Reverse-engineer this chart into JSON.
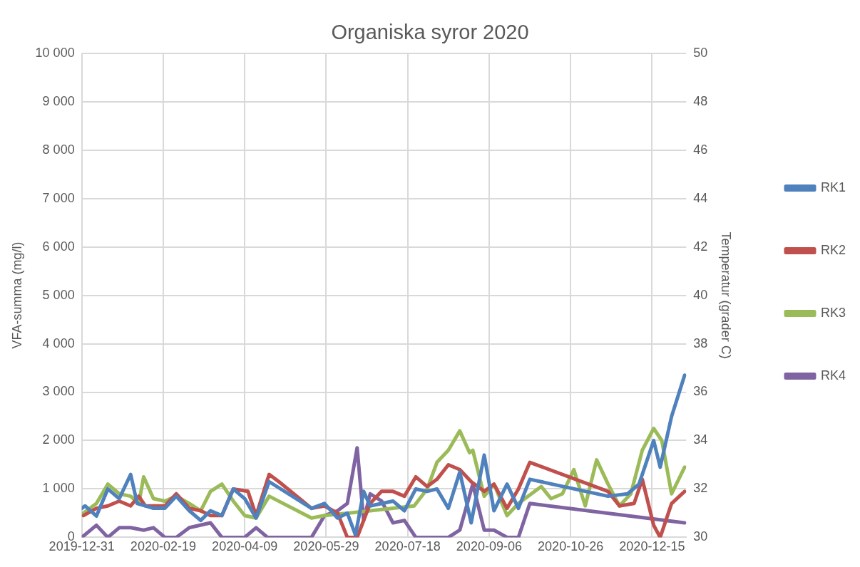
{
  "chart_data": {
    "type": "line",
    "title": "Organiska syror 2020",
    "ylabel": "VFA-summa (mg/l)",
    "y2label": "Temperatur (grader C)",
    "xlim": [
      "2019-12-31",
      "2021-01-05"
    ],
    "xticks": [
      "2019-12-31",
      "2020-02-19",
      "2020-04-09",
      "2020-05-29",
      "2020-07-18",
      "2020-09-06",
      "2020-10-26",
      "2020-12-15"
    ],
    "ylim": [
      0,
      10000
    ],
    "yticks": [
      {
        "value": 0,
        "label": "0"
      },
      {
        "value": 1000,
        "label": "1 000"
      },
      {
        "value": 2000,
        "label": "2 000"
      },
      {
        "value": 3000,
        "label": "3 000"
      },
      {
        "value": 4000,
        "label": "4 000"
      },
      {
        "value": 5000,
        "label": "5 000"
      },
      {
        "value": 6000,
        "label": "6 000"
      },
      {
        "value": 7000,
        "label": "7 000"
      },
      {
        "value": 8000,
        "label": "8 000"
      },
      {
        "value": 9000,
        "label": "9 000"
      },
      {
        "value": 10000,
        "label": "10 000"
      }
    ],
    "y2lim": [
      30,
      50
    ],
    "y2ticks": [
      30,
      32,
      34,
      36,
      38,
      40,
      42,
      44,
      46,
      48,
      50
    ],
    "grid": true,
    "legend": "right",
    "marker": "none",
    "line_style": "solid",
    "series": [
      {
        "name": "RK1",
        "color": "#4f81bd",
        "x": [
          "2019-12-31",
          "2020-01-02",
          "2020-01-09",
          "2020-01-16",
          "2020-01-23",
          "2020-01-30",
          "2020-02-03",
          "2020-02-08",
          "2020-02-13",
          "2020-02-20",
          "2020-02-27",
          "2020-03-06",
          "2020-03-13",
          "2020-03-19",
          "2020-03-26",
          "2020-04-02",
          "2020-04-09",
          "2020-04-16",
          "2020-04-24",
          "2020-05-20",
          "2020-05-28",
          "2020-06-05",
          "2020-06-11",
          "2020-06-16",
          "2020-06-21",
          "2020-06-25",
          "2020-07-09",
          "2020-07-16",
          "2020-07-23",
          "2020-07-30",
          "2020-08-05",
          "2020-08-12",
          "2020-08-19",
          "2020-08-26",
          "2020-09-03",
          "2020-09-09",
          "2020-09-17",
          "2020-09-24",
          "2020-10-01",
          "2020-11-18",
          "2020-11-30",
          "2020-12-07",
          "2020-12-16",
          "2020-12-20",
          "2020-12-27",
          "2021-01-04"
        ],
        "values": [
          600,
          650,
          440,
          1000,
          800,
          1300,
          700,
          650,
          600,
          600,
          850,
          550,
          350,
          550,
          450,
          1000,
          800,
          400,
          1150,
          600,
          700,
          400,
          500,
          50,
          950,
          650,
          750,
          550,
          1000,
          950,
          1000,
          600,
          1350,
          300,
          1700,
          550,
          1100,
          600,
          1200,
          850,
          900,
          1100,
          2000,
          1450,
          2500,
          3350
        ]
      },
      {
        "name": "RK2",
        "color": "#c0504d",
        "x": [
          "2020-01-01",
          "2020-01-09",
          "2020-01-16",
          "2020-01-23",
          "2020-01-30",
          "2020-02-04",
          "2020-02-08",
          "2020-02-20",
          "2020-02-27",
          "2020-03-06",
          "2020-03-13",
          "2020-03-19",
          "2020-03-26",
          "2020-04-02",
          "2020-04-11",
          "2020-04-16",
          "2020-04-24",
          "2020-04-30",
          "2020-05-20",
          "2020-05-28",
          "2020-06-05",
          "2020-06-11",
          "2020-06-17",
          "2020-06-25",
          "2020-07-02",
          "2020-07-09",
          "2020-07-16",
          "2020-07-23",
          "2020-07-30",
          "2020-08-05",
          "2020-08-12",
          "2020-08-19",
          "2020-08-26",
          "2020-09-03",
          "2020-09-09",
          "2020-09-17",
          "2020-09-24",
          "2020-10-01",
          "2020-11-18",
          "2020-11-25",
          "2020-12-04",
          "2020-12-09",
          "2020-12-16",
          "2020-12-20",
          "2020-12-27",
          "2021-01-04"
        ],
        "values": [
          450,
          600,
          650,
          750,
          650,
          850,
          650,
          650,
          900,
          600,
          550,
          450,
          450,
          1000,
          950,
          450,
          1300,
          1150,
          600,
          650,
          500,
          0,
          0,
          700,
          950,
          950,
          850,
          1250,
          1050,
          1200,
          1500,
          1400,
          1150,
          950,
          1100,
          600,
          1000,
          1550,
          950,
          650,
          700,
          1200,
          250,
          0,
          700,
          950
        ]
      },
      {
        "name": "RK3",
        "color": "#9bbb59",
        "x": [
          "2020-01-01",
          "2020-01-09",
          "2020-01-16",
          "2020-01-23",
          "2020-01-30",
          "2020-02-04",
          "2020-02-07",
          "2020-02-13",
          "2020-02-20",
          "2020-02-27",
          "2020-03-06",
          "2020-03-13",
          "2020-03-19",
          "2020-03-26",
          "2020-04-02",
          "2020-04-09",
          "2020-04-16",
          "2020-04-24",
          "2020-05-20",
          "2020-05-28",
          "2020-06-11",
          "2020-07-22",
          "2020-07-30",
          "2020-08-05",
          "2020-08-12",
          "2020-08-19",
          "2020-08-25",
          "2020-08-27",
          "2020-09-03",
          "2020-09-09",
          "2020-09-17",
          "2020-09-24",
          "2020-10-08",
          "2020-10-14",
          "2020-10-21",
          "2020-10-28",
          "2020-11-04",
          "2020-11-11",
          "2020-11-18",
          "2020-11-25",
          "2020-12-02",
          "2020-12-09",
          "2020-12-16",
          "2020-12-21",
          "2020-12-27",
          "2021-01-04"
        ],
        "values": [
          500,
          700,
          1100,
          900,
          850,
          700,
          1250,
          800,
          750,
          850,
          700,
          550,
          950,
          1100,
          750,
          450,
          400,
          850,
          400,
          450,
          500,
          650,
          1000,
          1550,
          1800,
          2200,
          1750,
          1800,
          850,
          1100,
          450,
          700,
          1050,
          800,
          900,
          1400,
          650,
          1600,
          1100,
          650,
          900,
          1800,
          2250,
          2000,
          900,
          1450
        ]
      },
      {
        "name": "RK4",
        "color": "#8064a2",
        "x": [
          "2019-12-31",
          "2020-01-09",
          "2020-01-16",
          "2020-01-23",
          "2020-01-30",
          "2020-02-07",
          "2020-02-13",
          "2020-02-20",
          "2020-02-27",
          "2020-03-06",
          "2020-03-19",
          "2020-03-26",
          "2020-04-09",
          "2020-04-16",
          "2020-04-23",
          "2020-05-20",
          "2020-05-28",
          "2020-06-05",
          "2020-06-11",
          "2020-06-17",
          "2020-06-21",
          "2020-06-25",
          "2020-07-02",
          "2020-07-09",
          "2020-07-16",
          "2020-07-23",
          "2020-08-12",
          "2020-08-19",
          "2020-08-27",
          "2020-09-03",
          "2020-09-09",
          "2020-09-17",
          "2020-09-24",
          "2020-10-01",
          "2021-01-04"
        ],
        "values": [
          0,
          250,
          0,
          200,
          200,
          150,
          200,
          0,
          0,
          200,
          300,
          0,
          0,
          200,
          0,
          0,
          450,
          550,
          700,
          1850,
          350,
          900,
          750,
          300,
          350,
          0,
          0,
          150,
          1100,
          150,
          150,
          0,
          0,
          700,
          300
        ]
      }
    ]
  }
}
